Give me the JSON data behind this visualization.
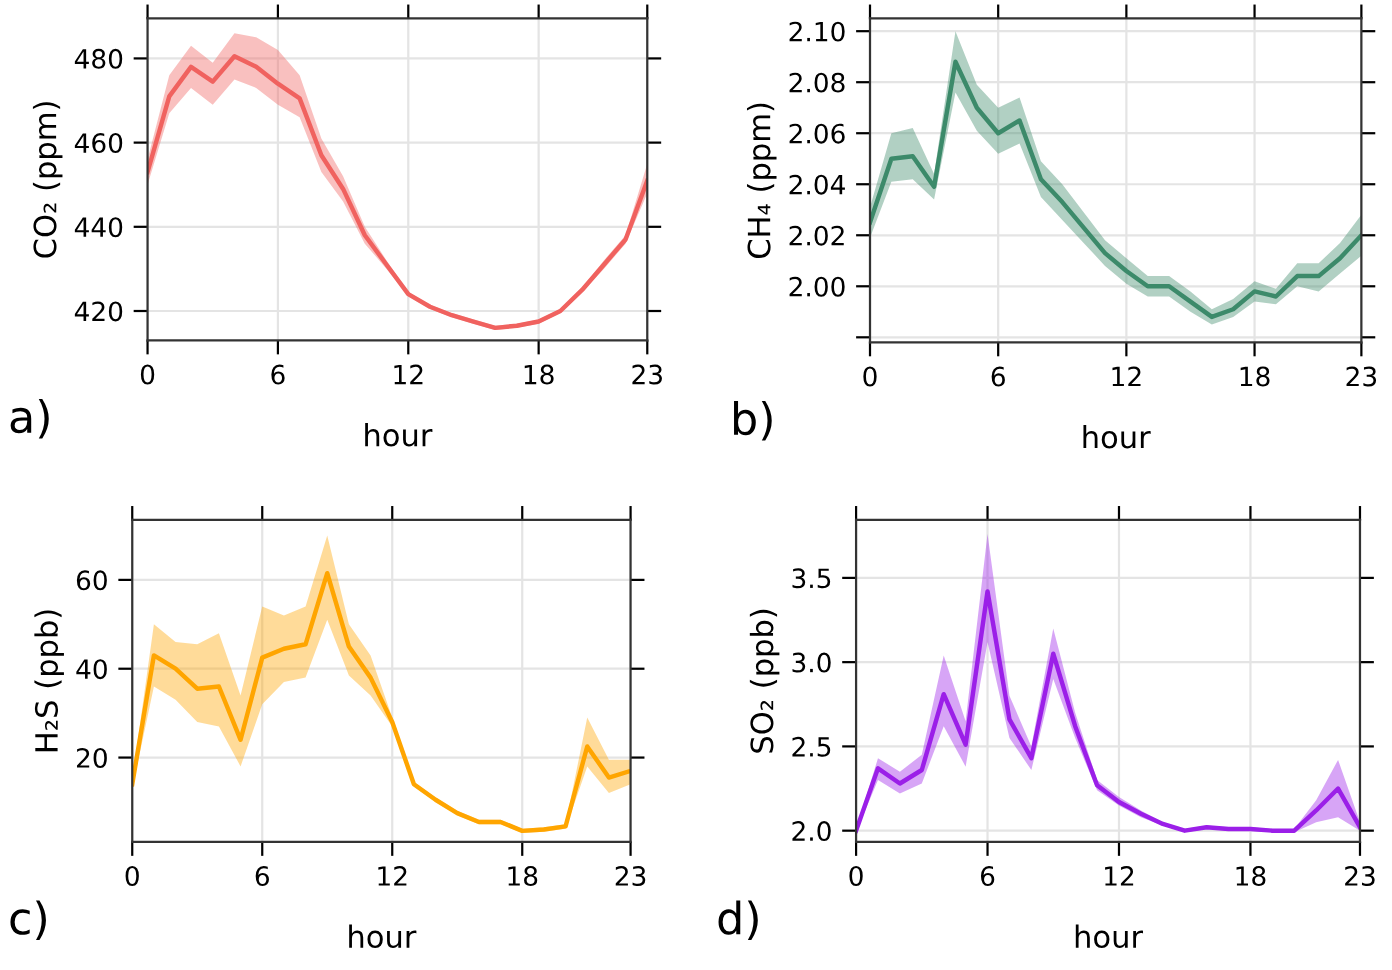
{
  "chart_data": [
    {
      "type": "line",
      "xlabel": "hour",
      "ylabel": "CO₂ (ppm)",
      "annotations": [
        "a)"
      ],
      "grid": true,
      "x": [
        0,
        1,
        2,
        3,
        4,
        5,
        6,
        7,
        8,
        9,
        10,
        11,
        12,
        13,
        14,
        15,
        16,
        17,
        18,
        19,
        20,
        21,
        22,
        23
      ],
      "series": [
        {
          "color": "#f0625f",
          "values": [
            453,
            471,
            478,
            474.5,
            480.5,
            478,
            474,
            470.5,
            457,
            449,
            438,
            431,
            424,
            421,
            419,
            417.5,
            416,
            416.5,
            417.5,
            420,
            425,
            431,
            437,
            451
          ],
          "lower": [
            450,
            467,
            473,
            469,
            475,
            473,
            469,
            466,
            453,
            446,
            436,
            430,
            423.5,
            420.5,
            418.5,
            417,
            415.5,
            416,
            417,
            419.5,
            424.5,
            430,
            436,
            448
          ],
          "upper": [
            456,
            476,
            483,
            479,
            486,
            485,
            482,
            476,
            461,
            452,
            440,
            432,
            424.5,
            421.5,
            419.5,
            418,
            416.5,
            417,
            418,
            420.5,
            425.5,
            432,
            438,
            455
          ]
        }
      ],
      "xlim": [
        0,
        23
      ],
      "ylim": [
        413,
        489.5
      ],
      "xticks": [
        0,
        6,
        12,
        18,
        23
      ],
      "yticks": [
        420,
        440,
        460,
        480
      ]
    },
    {
      "type": "line",
      "xlabel": "hour",
      "ylabel": "CH₄ (ppm)",
      "annotations": [
        "b)"
      ],
      "grid": true,
      "x": [
        0,
        1,
        2,
        3,
        4,
        5,
        6,
        7,
        8,
        9,
        10,
        11,
        12,
        13,
        14,
        15,
        16,
        17,
        18,
        19,
        20,
        21,
        22,
        23
      ],
      "series": [
        {
          "color": "#3c8a6a",
          "values": [
            2.025,
            2.05,
            2.051,
            2.039,
            2.088,
            2.07,
            2.06,
            2.065,
            2.042,
            2.033,
            2.023,
            2.013,
            2.006,
            2.0,
            2.0,
            1.994,
            1.988,
            1.991,
            1.998,
            1.996,
            2.004,
            2.004,
            2.011,
            2.02
          ],
          "lower": [
            2.019,
            2.041,
            2.042,
            2.034,
            2.076,
            2.061,
            2.052,
            2.056,
            2.035,
            2.026,
            2.017,
            2.008,
            2.001,
            1.996,
            1.996,
            1.99,
            1.985,
            1.988,
            1.994,
            1.993,
            2.0,
            1.998,
            2.005,
            2.012
          ],
          "upper": [
            2.031,
            2.06,
            2.062,
            2.044,
            2.1,
            2.079,
            2.07,
            2.074,
            2.049,
            2.04,
            2.029,
            2.018,
            2.011,
            2.004,
            2.004,
            1.998,
            1.991,
            1.995,
            2.002,
            1.999,
            2.009,
            2.009,
            2.017,
            2.028
          ]
        }
      ],
      "xlim": [
        0,
        23
      ],
      "ylim": [
        1.978,
        2.105
      ],
      "xticks": [
        0,
        6,
        12,
        18,
        23
      ],
      "yticks": [
        {
          "value": 1.98,
          "label": null
        },
        {
          "value": 2.0,
          "label": "2.00"
        },
        {
          "value": 2.02,
          "label": "2.02"
        },
        {
          "value": 2.04,
          "label": "2.04"
        },
        {
          "value": 2.06,
          "label": "2.06"
        },
        {
          "value": 2.08,
          "label": "2.08"
        },
        {
          "value": 2.1,
          "label": "2.10"
        }
      ]
    },
    {
      "type": "line",
      "xlabel": "hour",
      "ylabel": "H₂S (ppb)",
      "annotations": [
        "c)"
      ],
      "grid": true,
      "x": [
        0,
        1,
        2,
        3,
        4,
        5,
        6,
        7,
        8,
        9,
        10,
        11,
        12,
        13,
        14,
        15,
        16,
        17,
        18,
        19,
        20,
        21,
        22,
        23
      ],
      "series": [
        {
          "color": "#ffa500",
          "values": [
            14,
            43,
            40,
            35.5,
            36,
            24,
            42.5,
            44.5,
            45.5,
            61.5,
            45,
            38,
            28,
            14,
            10.5,
            7.5,
            5.5,
            5.5,
            3.5,
            3.8,
            4.5,
            22.5,
            15.5,
            17
          ],
          "lower": [
            13,
            36,
            33,
            28,
            27,
            18,
            32,
            37,
            38,
            51,
            38.5,
            34,
            27,
            13.5,
            10,
            7,
            5,
            5,
            3,
            3.3,
            4,
            18,
            12,
            14
          ],
          "upper": [
            15,
            50,
            46,
            45.5,
            48,
            34,
            54,
            52,
            54,
            70,
            50,
            43,
            29,
            14.5,
            11,
            8,
            6,
            6,
            4,
            4.3,
            5,
            29,
            19.5,
            19.5
          ]
        }
      ],
      "xlim": [
        0,
        23
      ],
      "ylim": [
        1,
        73.5
      ],
      "xticks": [
        0,
        6,
        12,
        18,
        23
      ],
      "yticks": [
        20,
        40,
        60
      ]
    },
    {
      "type": "line",
      "xlabel": "hour",
      "ylabel": "SO₂ (ppb)",
      "annotations": [
        "d)"
      ],
      "grid": true,
      "x": [
        0,
        1,
        2,
        3,
        4,
        5,
        6,
        7,
        8,
        9,
        10,
        11,
        12,
        13,
        14,
        15,
        16,
        17,
        18,
        19,
        20,
        21,
        22,
        23
      ],
      "series": [
        {
          "color": "#9b1fe8",
          "values": [
            2.0,
            2.37,
            2.28,
            2.36,
            2.81,
            2.51,
            3.42,
            2.66,
            2.43,
            3.05,
            2.62,
            2.27,
            2.17,
            2.1,
            2.04,
            2.0,
            2.02,
            2.01,
            2.01,
            2.0,
            2.0,
            2.12,
            2.25,
            2.02
          ],
          "lower": [
            1.99,
            2.3,
            2.22,
            2.28,
            2.62,
            2.38,
            3.12,
            2.55,
            2.36,
            2.9,
            2.55,
            2.24,
            2.15,
            2.08,
            2.03,
            1.99,
            2.01,
            2.0,
            2.0,
            1.99,
            1.99,
            2.05,
            2.08,
            2.0
          ],
          "upper": [
            2.01,
            2.43,
            2.35,
            2.45,
            3.04,
            2.65,
            3.76,
            2.8,
            2.5,
            3.2,
            2.7,
            2.3,
            2.2,
            2.12,
            2.05,
            2.01,
            2.03,
            2.02,
            2.02,
            2.01,
            2.01,
            2.18,
            2.42,
            2.05
          ]
        }
      ],
      "xlim": [
        0,
        23
      ],
      "ylim": [
        1.933,
        3.844
      ],
      "xticks": [
        0,
        6,
        12,
        18,
        23
      ],
      "yticks": [
        {
          "value": 2.0,
          "label": "2.0"
        },
        {
          "value": 2.5,
          "label": "2.5"
        },
        {
          "value": 3.0,
          "label": "3.0"
        },
        {
          "value": 3.5,
          "label": "3.5"
        }
      ]
    }
  ]
}
